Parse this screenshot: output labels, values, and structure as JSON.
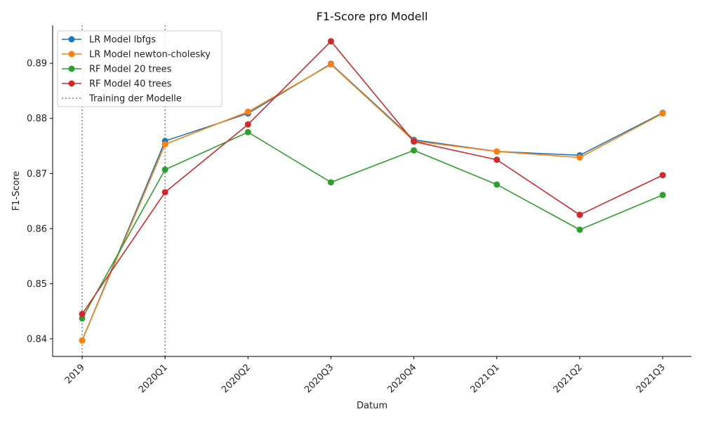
{
  "chart_data": {
    "type": "line",
    "title": "F1-Score pro Modell",
    "xlabel": "Datum",
    "ylabel": "F1-Score",
    "categories": [
      "2019",
      "2020Q1",
      "2020Q2",
      "2020Q3",
      "2020Q4",
      "2021Q1",
      "2021Q2",
      "2021Q3"
    ],
    "ylim": [
      0.8368,
      0.8969
    ],
    "yticks": [
      "0.84",
      "0.85",
      "0.86",
      "0.87",
      "0.88",
      "0.89"
    ],
    "ytick_values": [
      0.84,
      0.85,
      0.86,
      0.87,
      0.88,
      0.89
    ],
    "grid": false,
    "legend_position": "top-left",
    "series": [
      {
        "name": "LR Model lbfgs",
        "color": "#1f77b4",
        "values": [
          0.8397,
          0.8759,
          0.8809,
          0.8899,
          0.8761,
          0.874,
          0.8733,
          0.881
        ]
      },
      {
        "name": "LR Model newton-cholesky",
        "color": "#ff7f0e",
        "values": [
          0.8397,
          0.8753,
          0.8812,
          0.8898,
          0.8759,
          0.874,
          0.8729,
          0.8809
        ]
      },
      {
        "name": "RF Model 20 trees",
        "color": "#2ca02c",
        "values": [
          0.8437,
          0.8707,
          0.8775,
          0.8684,
          0.8742,
          0.868,
          0.8598,
          0.8661
        ]
      },
      {
        "name": "RF Model 40 trees",
        "color": "#d62728",
        "values": [
          0.8445,
          0.8666,
          0.8789,
          0.894,
          0.8758,
          0.8725,
          0.8625,
          0.8697
        ]
      }
    ],
    "vlines": {
      "name": "Training der Modelle",
      "color": "#808080",
      "at": [
        "2019",
        "2020Q1"
      ]
    }
  }
}
